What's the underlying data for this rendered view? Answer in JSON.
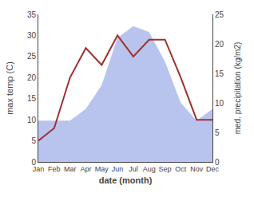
{
  "chart_data": {
    "type": "line",
    "categories": [
      "Jan",
      "Feb",
      "Mar",
      "Apr",
      "May",
      "Jun",
      "Jul",
      "Aug",
      "Sep",
      "Oct",
      "Nov",
      "Dec"
    ],
    "series": [
      {
        "type": "area",
        "axis": "y2",
        "color": "#b8c4ee",
        "values": [
          7,
          7,
          7,
          9,
          13,
          21,
          23,
          22,
          17,
          10,
          7,
          9
        ]
      },
      {
        "type": "line",
        "color": "#a03030",
        "values": [
          5,
          8,
          20,
          27,
          23,
          30,
          25,
          29,
          29,
          20,
          10,
          10
        ]
      }
    ],
    "xlabel": "date (month)",
    "ylabel": "max temp (C)",
    "y2label": "med. precipitation (kg/m2)",
    "ylim": [
      0,
      35
    ],
    "yticks": [
      0,
      5,
      10,
      15,
      20,
      25,
      30,
      35
    ],
    "y2lim": [
      0,
      25
    ],
    "y2ticks": [
      0,
      5,
      10,
      15,
      20,
      25
    ],
    "grid": false
  }
}
